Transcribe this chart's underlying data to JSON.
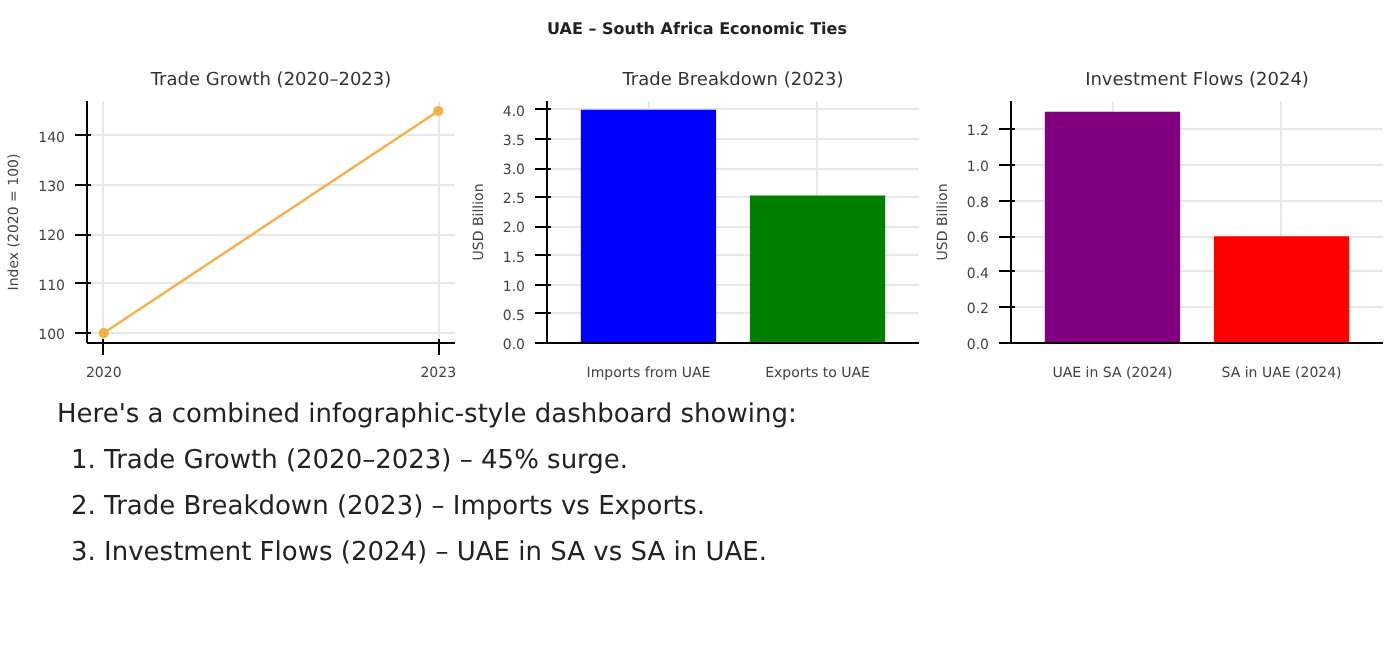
{
  "chart_data": [
    {
      "type": "other",
      "title": "UAE – South Africa Economic Ties"
    },
    {
      "type": "line",
      "title": "Trade Growth (2020–2023)",
      "ylabel": "Index (2020 = 100)",
      "x": [
        2020,
        2023
      ],
      "series": [
        {
          "color": "#f5b041",
          "values": [
            100,
            145
          ]
        }
      ],
      "xlim": [
        2019.85,
        2023.15
      ],
      "xticks": [
        2020,
        2023
      ],
      "ylim": [
        98,
        147
      ],
      "yticks": [
        100,
        110,
        120,
        130,
        140
      ],
      "grid": true,
      "marker": "circle",
      "line_style": "solid"
    },
    {
      "type": "bar",
      "title": "Trade Breakdown (2023)",
      "ylabel": "USD Billion",
      "categories": [
        "Imports from UAE",
        "Exports to UAE"
      ],
      "values": [
        4.0,
        2.53
      ],
      "colors": [
        "#0000ff",
        "#008000"
      ],
      "ylim": [
        0,
        4.15
      ],
      "yticks": [
        {
          "value": 0,
          "label": "0.0"
        },
        {
          "value": 0.5,
          "label": "0.5"
        },
        {
          "value": 1,
          "label": "1.0"
        },
        {
          "value": 1.5,
          "label": "1.5"
        },
        {
          "value": 2,
          "label": "2.0"
        },
        {
          "value": 2.5,
          "label": "2.5"
        },
        {
          "value": 3,
          "label": "3.0"
        },
        {
          "value": 3.5,
          "label": "3.5"
        },
        {
          "value": 4,
          "label": "4.0"
        }
      ],
      "grid": true
    },
    {
      "type": "bar",
      "title": "Investment Flows (2024)",
      "ylabel": "USD Billion",
      "categories": [
        "UAE in SA (2024)",
        "SA in UAE (2024)"
      ],
      "values": [
        1.3,
        0.6
      ],
      "colors": [
        "#800080",
        "#ff0000"
      ],
      "ylim": [
        0,
        1.36
      ],
      "yticks": [
        {
          "value": 0,
          "label": "0.0"
        },
        {
          "value": 0.2,
          "label": "0.2"
        },
        {
          "value": 0.4,
          "label": "0.4"
        },
        {
          "value": 0.6,
          "label": "0.6"
        },
        {
          "value": 0.8,
          "label": "0.8"
        },
        {
          "value": 1,
          "label": "1.0"
        },
        {
          "value": 1.2,
          "label": "1.2"
        }
      ],
      "grid": true
    },
    {
      "type": "other",
      "annotations": [
        "Here's a combined infographic-style dashboard showing:",
        "1.  Trade Growth (2020–2023) – 45% surge.",
        "2.  Trade Breakdown (2023) – Imports vs Exports.",
        "3.  Investment Flows (2024) – UAE in SA vs SA in UAE."
      ]
    }
  ]
}
